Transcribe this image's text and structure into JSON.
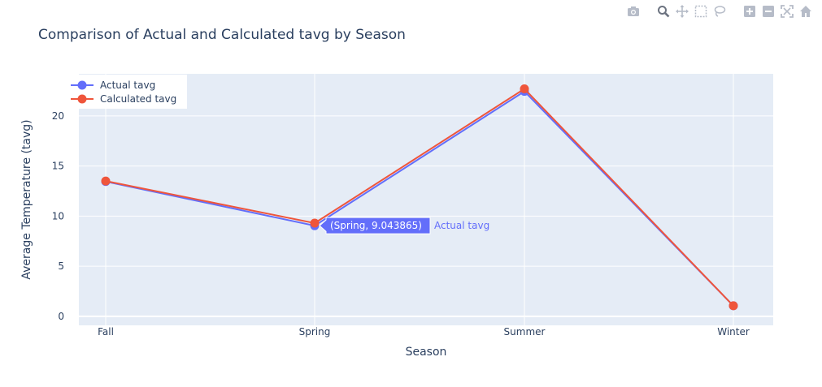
{
  "toolbar": {
    "buttons": [
      {
        "name": "camera-icon",
        "title": "Download plot as a png"
      },
      {
        "name": "zoom-icon",
        "title": "Zoom"
      },
      {
        "name": "pan-icon",
        "title": "Pan"
      },
      {
        "name": "box-select-icon",
        "title": "Box Select"
      },
      {
        "name": "lasso-select-icon",
        "title": "Lasso Select"
      },
      {
        "name": "zoom-in-icon",
        "title": "Zoom in"
      },
      {
        "name": "zoom-out-icon",
        "title": "Zoom out"
      },
      {
        "name": "autoscale-icon",
        "title": "Autoscale"
      },
      {
        "name": "reset-axes-icon",
        "title": "Reset axes"
      }
    ],
    "icon_color": "#b6bcc8",
    "active_icon_color": "#6c7380"
  },
  "chart_data": {
    "type": "line",
    "title": "Comparison of Actual and Calculated tavg by Season",
    "xlabel": "Season",
    "ylabel": "Average Temperature (tavg)",
    "categories": [
      "Fall",
      "Spring",
      "Summer",
      "Winter"
    ],
    "ylim": [
      -0.9,
      24.2
    ],
    "yticks": [
      0,
      5,
      10,
      15,
      20
    ],
    "grid": true,
    "legend_position": "top-left",
    "series": [
      {
        "name": "Actual tavg",
        "values": [
          13.45,
          9.043865,
          22.45,
          1.05
        ],
        "color": "#636efa"
      },
      {
        "name": "Calculated tavg",
        "values": [
          13.5,
          9.3,
          22.7,
          1.05
        ],
        "color": "#ef553b"
      }
    ],
    "hover": {
      "series_index": 0,
      "point_index": 1,
      "label": "(Spring, 9.043865)",
      "series_label": "Actual tavg"
    },
    "colors": {
      "plot_bg": "#e5ecf6",
      "grid": "#ffffff",
      "text": "#2a3f5f"
    }
  }
}
